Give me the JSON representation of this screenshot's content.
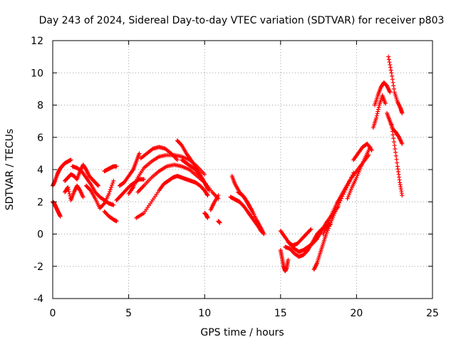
{
  "chart_data": {
    "type": "scatter",
    "title": "Day 243 of 2024, Sidereal Day-to-day VTEC variation (SDTVAR) for receiver p803",
    "xlabel": "GPS time / hours",
    "ylabel": "SDTVAR / TECUs",
    "xlim": [
      0,
      25
    ],
    "ylim": [
      -4,
      12
    ],
    "xticks": [
      0,
      5,
      10,
      15,
      20,
      25
    ],
    "yticks": [
      -4,
      -2,
      0,
      2,
      4,
      6,
      8,
      10,
      12
    ],
    "grid": true,
    "marker": "+",
    "color": "#ff0000",
    "series": [
      {
        "name": "trace-a",
        "x": [
          0.0,
          0.1,
          0.2,
          0.3,
          0.4,
          0.5
        ],
        "y": [
          2.0,
          1.9,
          1.7,
          1.5,
          1.3,
          1.1
        ]
      },
      {
        "name": "trace-b",
        "x": [
          0.0,
          0.15,
          0.3,
          0.45,
          0.6,
          0.8,
          1.0,
          1.2
        ],
        "y": [
          3.0,
          3.3,
          3.7,
          4.0,
          4.2,
          4.4,
          4.5,
          4.6
        ]
      },
      {
        "name": "trace-c",
        "x": [
          0.8,
          1.0,
          1.2,
          1.4,
          1.6,
          1.8,
          2.0,
          2.2,
          2.4,
          2.6,
          2.8,
          3.0
        ],
        "y": [
          3.3,
          3.5,
          3.7,
          3.6,
          3.4,
          3.9,
          4.3,
          4.0,
          3.6,
          3.4,
          3.2,
          3.0
        ]
      },
      {
        "name": "trace-d",
        "x": [
          0.8,
          1.0,
          1.2,
          1.4,
          1.6,
          1.8,
          2.0
        ],
        "y": [
          2.6,
          2.9,
          2.1,
          2.6,
          3.0,
          2.7,
          2.3
        ]
      },
      {
        "name": "trace-e",
        "x": [
          1.3,
          1.6,
          1.9,
          2.2,
          2.5,
          2.8,
          3.1,
          3.4,
          3.7,
          4.0
        ],
        "y": [
          4.2,
          4.1,
          3.9,
          3.5,
          3.1,
          2.6,
          2.3,
          2.1,
          1.9,
          1.8
        ]
      },
      {
        "name": "trace-f",
        "x": [
          2.2,
          2.5,
          2.8,
          3.1,
          3.4,
          3.7,
          4.0
        ],
        "y": [
          3.0,
          2.7,
          2.2,
          1.6,
          1.9,
          2.5,
          3.3
        ]
      },
      {
        "name": "trace-g",
        "x": [
          3.4,
          3.7,
          4.0,
          4.2
        ],
        "y": [
          1.4,
          1.1,
          0.9,
          0.8
        ]
      },
      {
        "name": "trace-h",
        "x": [
          3.4,
          3.6,
          3.8,
          4.0,
          4.2
        ],
        "y": [
          3.9,
          4.0,
          4.1,
          4.2,
          4.2
        ]
      },
      {
        "name": "trace-i",
        "x": [
          4.2,
          4.5,
          4.8,
          5.1,
          5.4,
          5.7,
          6.0
        ],
        "y": [
          2.1,
          2.4,
          2.7,
          3.0,
          3.2,
          3.4,
          3.4
        ]
      },
      {
        "name": "trace-j",
        "x": [
          4.4,
          4.7,
          5.0,
          5.3,
          5.5,
          5.7
        ],
        "y": [
          3.0,
          3.2,
          3.6,
          4.0,
          4.5,
          5.0
        ]
      },
      {
        "name": "trace-k",
        "x": [
          5.0,
          5.3,
          5.6,
          6.0,
          6.5,
          7.0,
          7.5,
          8.0,
          8.5,
          9.0,
          9.5,
          10.0
        ],
        "y": [
          2.5,
          2.9,
          3.5,
          4.1,
          4.5,
          4.8,
          4.9,
          4.9,
          4.8,
          4.6,
          4.2,
          3.7
        ]
      },
      {
        "name": "trace-l",
        "x": [
          5.5,
          6.0,
          6.5,
          7.0,
          7.3,
          7.6,
          7.9,
          8.2,
          8.5,
          8.8,
          9.1,
          9.4,
          9.7,
          10.0,
          10.2
        ],
        "y": [
          1.0,
          1.3,
          2.0,
          2.7,
          3.1,
          3.3,
          3.5,
          3.6,
          3.5,
          3.4,
          3.3,
          3.2,
          3.0,
          2.7,
          2.4
        ]
      },
      {
        "name": "trace-m",
        "x": [
          5.6,
          6.0,
          6.5,
          7.0,
          7.5,
          8.0,
          8.5,
          9.0,
          9.5,
          10.0,
          10.5,
          10.9
        ],
        "y": [
          2.6,
          3.0,
          3.5,
          3.9,
          4.2,
          4.3,
          4.2,
          4.0,
          3.6,
          3.2,
          2.6,
          2.2
        ]
      },
      {
        "name": "trace-n",
        "x": [
          5.8,
          6.2,
          6.6,
          7.0,
          7.4,
          7.8,
          8.2
        ],
        "y": [
          4.7,
          5.0,
          5.3,
          5.4,
          5.3,
          5.0,
          4.6
        ]
      },
      {
        "name": "trace-o",
        "x": [
          8.2,
          8.5,
          8.8,
          9.1,
          9.4,
          9.7,
          10.0,
          10.3
        ],
        "y": [
          5.8,
          5.5,
          5.0,
          4.6,
          4.2,
          3.7,
          3.2,
          2.7
        ]
      },
      {
        "name": "trace-p",
        "x": [
          8.5,
          8.8,
          9.1,
          9.4,
          9.7,
          10.0,
          10.2
        ],
        "y": [
          4.6,
          4.4,
          4.2,
          4.0,
          3.6,
          3.2,
          2.8
        ]
      },
      {
        "name": "trace-q",
        "x": [
          10.0,
          10.1,
          10.2
        ],
        "y": [
          1.3,
          1.2,
          1.0
        ]
      },
      {
        "name": "trace-r",
        "x": [
          10.4,
          10.6,
          10.9
        ],
        "y": [
          1.5,
          1.9,
          2.4
        ]
      },
      {
        "name": "trace-s",
        "x": [
          10.9,
          11.0
        ],
        "y": [
          0.8,
          0.7
        ]
      },
      {
        "name": "trace-t",
        "x": [
          11.7,
          11.9,
          12.1,
          12.3,
          12.6,
          12.9,
          13.2,
          13.5,
          13.8
        ],
        "y": [
          2.3,
          2.2,
          2.1,
          2.0,
          1.7,
          1.3,
          0.9,
          0.5,
          0.1
        ]
      },
      {
        "name": "trace-u",
        "x": [
          11.8,
          12.0,
          12.3,
          12.6,
          12.9,
          13.2,
          13.5,
          13.7
        ],
        "y": [
          3.6,
          3.1,
          2.6,
          2.3,
          1.8,
          1.3,
          0.7,
          0.2
        ]
      },
      {
        "name": "trace-v",
        "x": [
          12.2,
          12.5,
          12.8,
          13.1,
          13.4,
          13.7,
          13.9
        ],
        "y": [
          2.6,
          2.4,
          2.0,
          1.5,
          0.9,
          0.4,
          0.0
        ]
      },
      {
        "name": "trace-w",
        "x": [
          15.0,
          15.1,
          15.2,
          15.3,
          15.4,
          15.5
        ],
        "y": [
          -1.0,
          -1.5,
          -2.0,
          -2.3,
          -2.1,
          -1.6
        ]
      },
      {
        "name": "trace-x",
        "x": [
          15.0,
          15.3,
          15.6,
          15.9,
          16.2,
          16.5,
          16.8,
          17.1,
          17.4,
          17.7,
          18.0,
          18.4,
          18.8
        ],
        "y": [
          0.2,
          -0.2,
          -0.6,
          -0.9,
          -1.1,
          -1.0,
          -0.8,
          -0.6,
          -0.3,
          0.2,
          0.7,
          1.2,
          1.7
        ]
      },
      {
        "name": "trace-y",
        "x": [
          15.3,
          15.6,
          15.9,
          16.2,
          16.5,
          16.8,
          17.1,
          17.4,
          17.7,
          18.0,
          18.3
        ],
        "y": [
          -0.8,
          -0.9,
          -1.2,
          -1.4,
          -1.3,
          -1.0,
          -0.5,
          0.0,
          0.3,
          0.5,
          0.6
        ]
      },
      {
        "name": "trace-z",
        "x": [
          15.5,
          15.8,
          16.1,
          16.4,
          16.7,
          17.0
        ],
        "y": [
          -0.5,
          -0.7,
          -0.6,
          -0.3,
          0.0,
          0.3
        ]
      },
      {
        "name": "trace-aa",
        "x": [
          17.2,
          17.4,
          17.6,
          17.8,
          18.0,
          18.3,
          18.6,
          19.0,
          19.4,
          19.8
        ],
        "y": [
          -2.2,
          -1.8,
          -1.2,
          -0.6,
          0.0,
          0.7,
          1.4,
          2.2,
          3.0,
          3.8
        ]
      },
      {
        "name": "trace-ab",
        "x": [
          17.8,
          18.1,
          18.4,
          18.7,
          19.0,
          19.3,
          19.6,
          20.0,
          20.4,
          20.8
        ],
        "y": [
          0.0,
          0.6,
          1.3,
          1.9,
          2.4,
          2.9,
          3.4,
          3.9,
          4.4,
          4.9
        ]
      },
      {
        "name": "trace-ac",
        "x": [
          19.4,
          19.7,
          20.0,
          20.3,
          20.6,
          20.9
        ],
        "y": [
          2.2,
          2.9,
          3.5,
          4.2,
          4.8,
          5.4
        ]
      },
      {
        "name": "trace-ad",
        "x": [
          19.8,
          20.1,
          20.4,
          20.7,
          21.0
        ],
        "y": [
          4.6,
          5.0,
          5.4,
          5.6,
          5.2
        ]
      },
      {
        "name": "trace-ae",
        "x": [
          21.1,
          21.3,
          21.5,
          21.7,
          21.9
        ],
        "y": [
          6.6,
          7.2,
          8.0,
          8.6,
          8.1
        ]
      },
      {
        "name": "trace-af",
        "x": [
          21.2,
          21.4,
          21.6,
          21.8,
          22.0,
          22.2
        ],
        "y": [
          8.0,
          8.6,
          9.1,
          9.4,
          9.2,
          8.8
        ]
      },
      {
        "name": "trace-ag",
        "x": [
          22.0,
          22.2,
          22.4,
          22.6,
          22.8,
          23.0
        ],
        "y": [
          7.5,
          7.0,
          6.5,
          6.3,
          6.0,
          5.6
        ]
      },
      {
        "name": "trace-ah",
        "x": [
          22.1,
          22.3,
          22.5,
          22.7,
          22.9,
          23.0
        ],
        "y": [
          11.0,
          10.0,
          8.8,
          8.2,
          7.8,
          7.5
        ]
      },
      {
        "name": "trace-ai",
        "x": [
          22.3,
          22.5,
          22.7,
          22.85,
          23.0
        ],
        "y": [
          6.8,
          5.5,
          4.2,
          3.2,
          2.4
        ]
      }
    ]
  }
}
